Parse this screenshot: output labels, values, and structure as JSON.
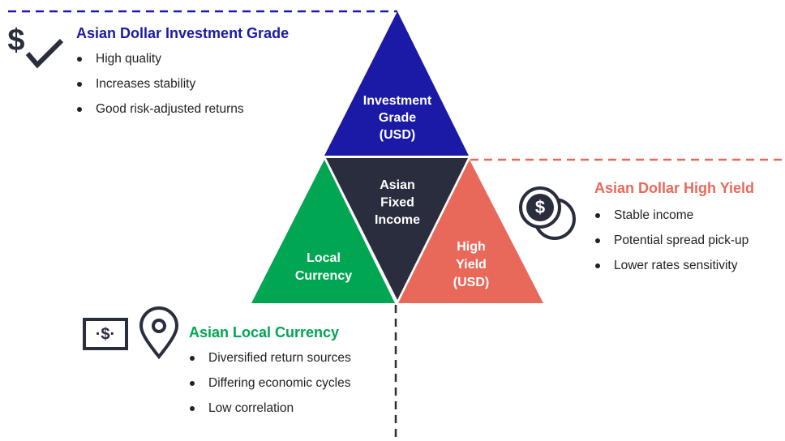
{
  "triangles": {
    "investment_grade": [
      "Investment",
      "Grade",
      "(USD)"
    ],
    "center": [
      "Asian",
      "Fixed",
      "Income"
    ],
    "local": [
      "Local",
      "Currency"
    ],
    "high_yield": [
      "High",
      "Yield",
      "(USD)"
    ]
  },
  "sections": [
    {
      "title": "Asian Dollar Investment Grade",
      "bullets": [
        "High quality",
        "Increases stability",
        "Good risk-adjusted returns"
      ]
    },
    {
      "title": "Asian Dollar High Yield",
      "bullets": [
        "Stable income",
        "Potential spread pick-up",
        "Lower rates sensitivity"
      ]
    },
    {
      "title": "Asian Local Currency",
      "bullets": [
        "Diversified return sources",
        "Differing economic cycles",
        "Low correlation"
      ]
    }
  ]
}
